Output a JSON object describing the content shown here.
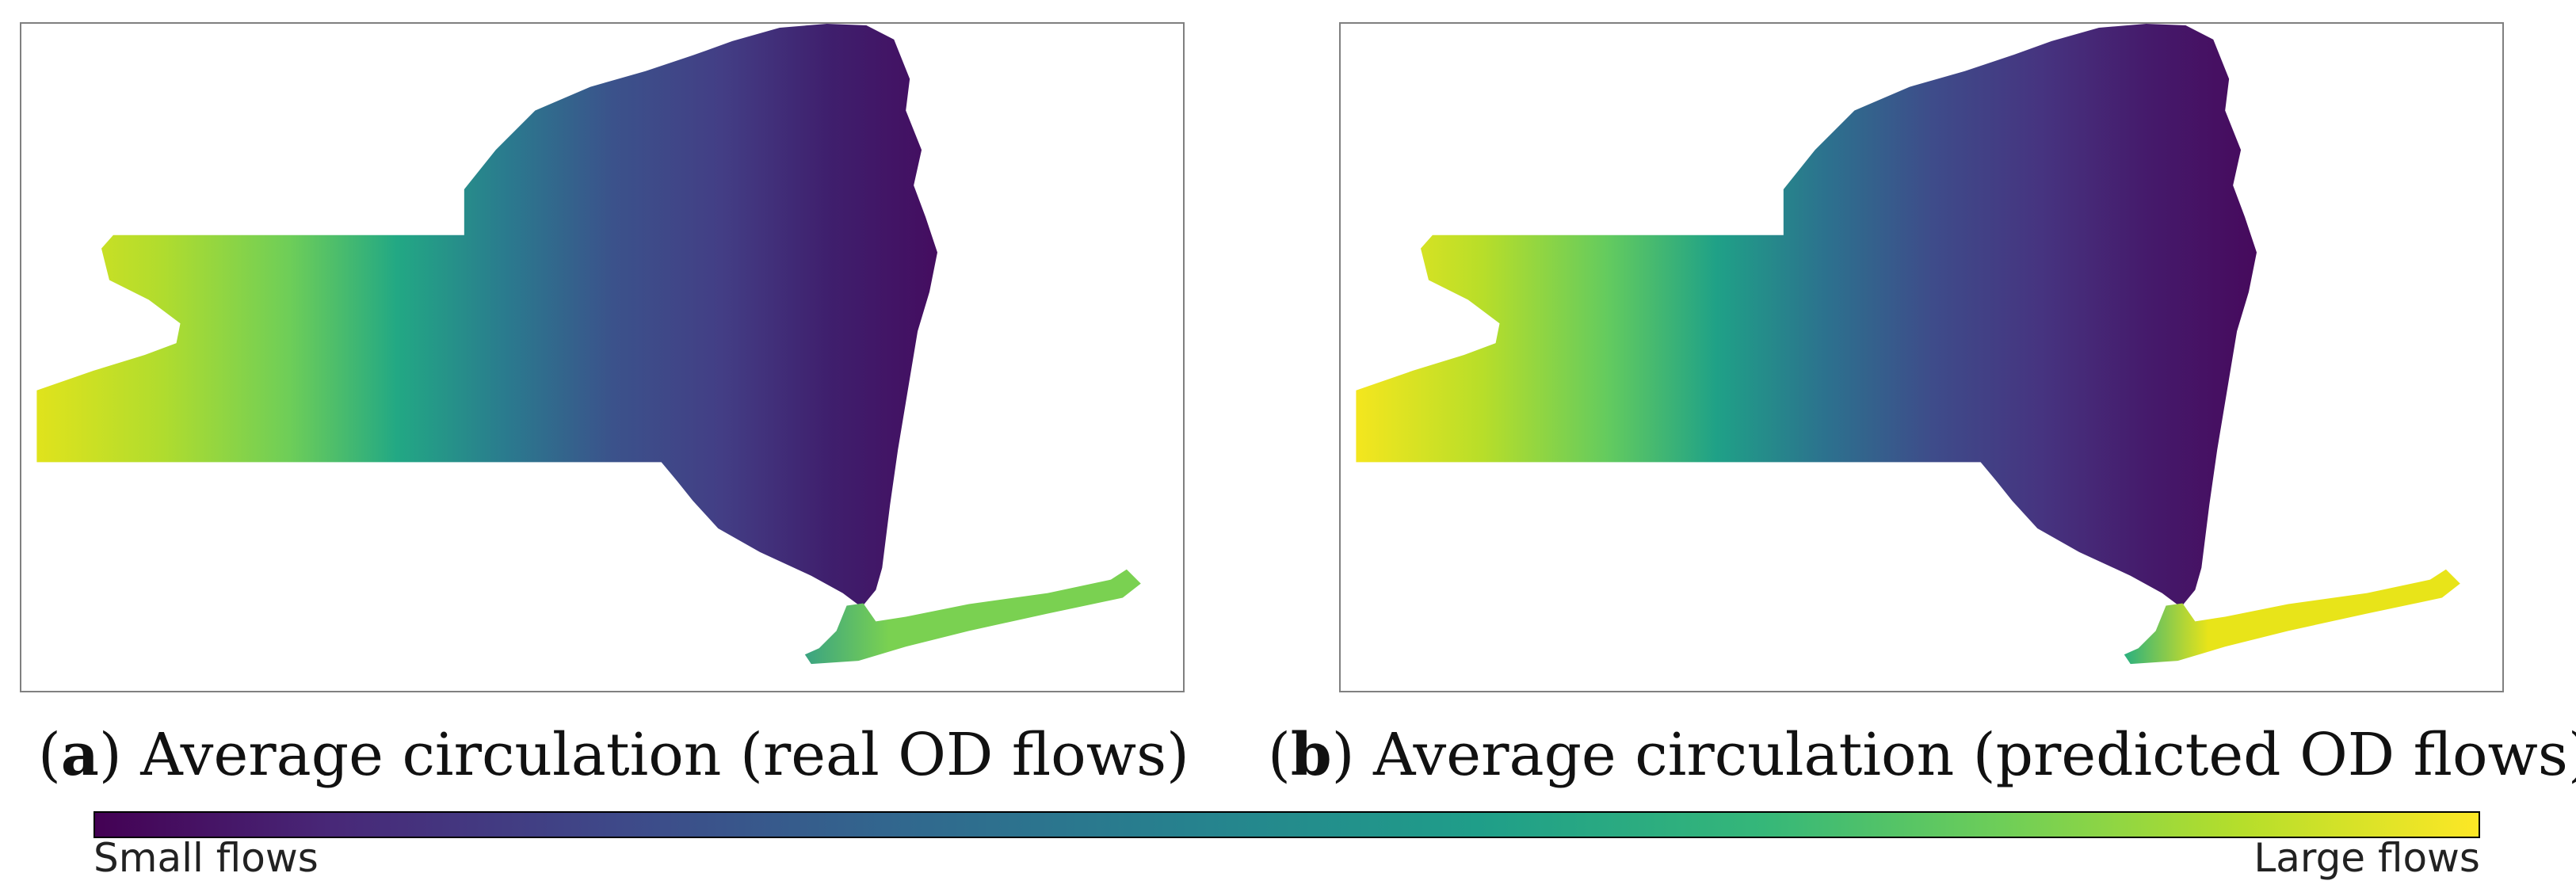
{
  "panels": [
    {
      "id": "a",
      "caption_letter": "a",
      "caption_text": "Average circulation (real OD flows)",
      "colors": {
        "far_west": "#e0e31c",
        "west_mid": "#b0dc2e",
        "west_green": "#6ece58",
        "central_teal": "#22a884",
        "central": "#2a7b8e",
        "east_central": "#3b528b",
        "north": "#433e85",
        "hudson": "#3f1f6d",
        "deep_east": "#440d60",
        "nyc": "#3aa382",
        "long_island": "#7ad151"
      }
    },
    {
      "id": "b",
      "caption_letter": "b",
      "caption_text": "Average circulation (predicted OD flows)",
      "colors": {
        "far_west": "#f4e61e",
        "west_mid": "#b8de29",
        "west_green": "#63cb5f",
        "central_teal": "#1fa187",
        "central": "#2c728e",
        "east_central": "#3e4c8a",
        "north": "#463480",
        "hudson": "#451a6b",
        "deep_east": "#460a5d",
        "nyc": "#2ab07f",
        "long_island": "#e8e419"
      }
    }
  ],
  "colorbar": {
    "colormap": "viridis",
    "min_label": "Small flows",
    "max_label": "Large flows"
  }
}
